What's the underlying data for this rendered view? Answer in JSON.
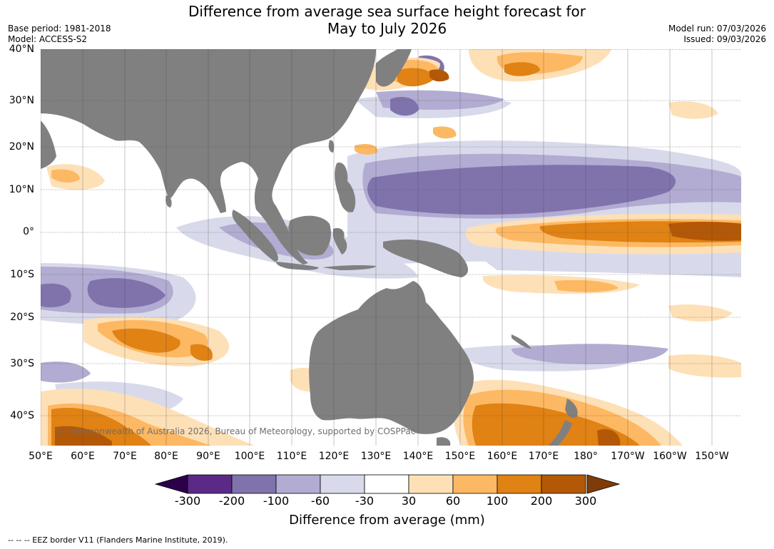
{
  "title_line1": "Difference from average sea surface height forecast for",
  "title_line2": "May to July 2026",
  "base_period": "Base period: 1981-2018",
  "model": "Model: ACCESS-S2",
  "model_run": "Model run: 07/03/2026",
  "issued": "Issued: 09/03/2026",
  "copyright": "© Commonwealth of Australia 2026, Bureau of Meteorology, supported by COSPPac",
  "lat_labels": [
    "40°N",
    "30°N",
    "20°N",
    "10°N",
    "0°",
    "10°S",
    "20°S",
    "30°S",
    "40°S"
  ],
  "lon_labels": [
    "50°E",
    "60°E",
    "70°E",
    "80°E",
    "90°E",
    "100°E",
    "110°E",
    "120°E",
    "130°E",
    "140°E",
    "150°E",
    "160°E",
    "170°E",
    "180°",
    "170°W",
    "160°W",
    "150°W"
  ],
  "colorbar": {
    "ticks": [
      "-300",
      "-200",
      "-100",
      "-60",
      "-30",
      "30",
      "60",
      "100",
      "200",
      "300"
    ],
    "colors": [
      "#5b2a86",
      "#8073ac",
      "#b2abd2",
      "#d8daeb",
      "#ffffff",
      "#fee0b6",
      "#fdb863",
      "#e08214",
      "#b35806"
    ],
    "under_color": "#2d004b",
    "over_color": "#7f3b08",
    "label": "Difference from average (mm)"
  },
  "footer": "--  --  -- EEZ border V11 (Flanders Marine Institute, 2019)."
}
